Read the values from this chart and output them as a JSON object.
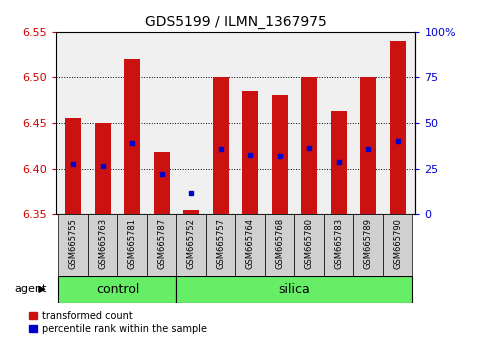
{
  "title": "GDS5199 / ILMN_1367975",
  "samples": [
    "GSM665755",
    "GSM665763",
    "GSM665781",
    "GSM665787",
    "GSM665752",
    "GSM665757",
    "GSM665764",
    "GSM665768",
    "GSM665780",
    "GSM665783",
    "GSM665789",
    "GSM665790"
  ],
  "n_control": 4,
  "bar_base": 6.35,
  "bar_tops": [
    6.455,
    6.45,
    6.52,
    6.418,
    6.355,
    6.5,
    6.485,
    6.481,
    6.5,
    6.463,
    6.5,
    6.54
  ],
  "percentile_values": [
    6.405,
    6.403,
    6.428,
    6.394,
    6.373,
    6.422,
    6.415,
    6.414,
    6.423,
    6.407,
    6.422,
    6.43
  ],
  "ylim_left": [
    6.35,
    6.55
  ],
  "yticks_left": [
    6.35,
    6.4,
    6.45,
    6.5,
    6.55
  ],
  "yticks_right": [
    0,
    25,
    50,
    75,
    100
  ],
  "ylabel_left_color": "#cc0000",
  "ylabel_right_color": "#0000cc",
  "bar_color": "#cc1111",
  "percentile_color": "#0000cc",
  "green_color": "#66ee66",
  "agent_label": "agent",
  "control_label": "control",
  "silica_label": "silica",
  "legend_bar": "transformed count",
  "legend_pct": "percentile rank within the sample",
  "plot_bg_color": "#f0f0f0",
  "tick_label_bg": "#d0d0d0",
  "grid_color": "#000000",
  "sample_label_color": "#000000",
  "title_fontsize": 10
}
